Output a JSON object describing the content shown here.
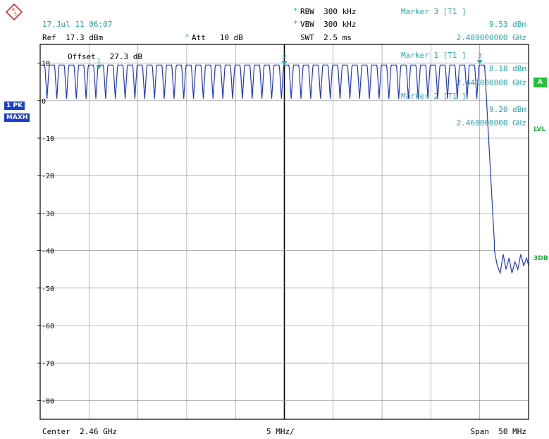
{
  "header": {
    "datetime": "17.Jul 11 06:07",
    "ref": "Ref  17.3 dBm",
    "att_star": "*",
    "att": "Att   10 dB",
    "rbw_star": "*",
    "rbw": "RBW  300 kHz",
    "vbw_star": "*",
    "vbw": "VBW  300 kHz",
    "swt": "SWT  2.5 ms"
  },
  "markers_info": {
    "m3_title": "Marker 3 [T1 ]",
    "m3_level": "9.53 dBm",
    "m3_freq": "2.480000000 GHz",
    "m1_title": "Marker 1 [T1 ]",
    "m1_level": "8.18 dBm",
    "m1_freq": "2.441000000 GHz",
    "m2_title": "Marker 2 [T1 ]",
    "m2_level": "9.20 dBm",
    "m2_freq": "2.460000000 GHz"
  },
  "side": {
    "trace": "1 PK",
    "mode": "MAXH",
    "a_box": "A",
    "lvl": "LVL",
    "db3": "3DB"
  },
  "offset_label": "Offset   27.3 dB",
  "footer": {
    "center": "Center  2.46 GHz",
    "div": "5 MHz/",
    "span": "Span  50 MHz"
  },
  "colors": {
    "trace": "#1f37d4",
    "marker": "#2aa5a5",
    "grid": "#8a8a8a",
    "frame": "#000000"
  },
  "chart_data": {
    "type": "line",
    "xlabel": "",
    "ylabel": "",
    "xlim": [
      2.435,
      2.485
    ],
    "ylim": [
      -85,
      15
    ],
    "y_ticks": [
      10,
      0,
      -10,
      -20,
      -30,
      -40,
      -50,
      -60,
      -70,
      -80
    ],
    "y_tick_labels": [
      "10",
      "0",
      "-10",
      "-20",
      "-30",
      "-40",
      "-50",
      "-60",
      "-70",
      "-80"
    ],
    "grid": true,
    "channels": {
      "first_center": 2.4352,
      "spacing": 0.001,
      "count": 46,
      "top_level": 9.5,
      "trough_level": 0.5
    },
    "rolloff": {
      "start_freq": 2.4805,
      "start_level": 9.5,
      "end_freq": 2.4815,
      "end_level": -38
    },
    "noise": {
      "x": [
        2.4815,
        2.4818,
        2.4821,
        2.4824,
        2.4827,
        2.483,
        2.4833,
        2.4836,
        2.4839,
        2.4842,
        2.4845,
        2.4848,
        2.485
      ],
      "y": [
        -40,
        -44,
        -46,
        -41,
        -45,
        -42,
        -46,
        -43,
        -45,
        -41,
        -44,
        -42,
        -44
      ]
    },
    "markers": [
      {
        "name": "1",
        "x": 2.441,
        "y": 8.18
      },
      {
        "name": "2",
        "x": 2.46,
        "y": 9.2
      },
      {
        "name": "3",
        "x": 2.48,
        "y": 9.53
      }
    ]
  }
}
